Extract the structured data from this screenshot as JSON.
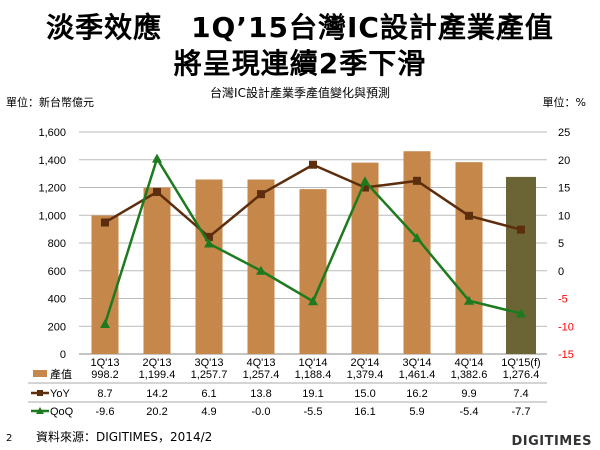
{
  "slide": {
    "title_line1": "淡季效應　1Q’15台灣IC設計產業產值",
    "title_line2": "將呈現連續2季下滑",
    "page_number": "2",
    "source": "資料來源：DIGITIMES，2014/2",
    "logo": "DIGITIMES"
  },
  "chart_data": {
    "type": "bar+line",
    "title": "台灣IC設計產業季產值變化與預測",
    "left_unit": "單位：新台幣億元",
    "right_unit": "單位：%",
    "categories": [
      "1Q'13",
      "2Q'13",
      "3Q'13",
      "4Q'13",
      "1Q'14",
      "2Q'14",
      "3Q'14",
      "4Q'14",
      "1Q'15(f)"
    ],
    "left_ylim": [
      0,
      1600
    ],
    "left_ticks": [
      "0",
      "200",
      "400",
      "600",
      "800",
      "1,000",
      "1,200",
      "1,400",
      "1,600"
    ],
    "right_ylim": [
      -15,
      25
    ],
    "right_ticks": [
      "-15",
      "-10",
      "-5",
      "0",
      "5",
      "10",
      "15",
      "20",
      "25"
    ],
    "grid": true,
    "legend": "data-table-below",
    "series": [
      {
        "name": "產值",
        "type": "bar",
        "axis": "left",
        "color": "#C6874A",
        "forecast_color": "#6B6535",
        "values": [
          998.2,
          1199.4,
          1257.7,
          1257.4,
          1188.4,
          1379.4,
          1461.4,
          1382.6,
          1276.4
        ],
        "labels": [
          "998.2",
          "1,199.4",
          "1,257.7",
          "1,257.4",
          "1,188.4",
          "1,379.4",
          "1,461.4",
          "1,382.6",
          "1,276.4"
        ]
      },
      {
        "name": "YoY",
        "type": "line",
        "axis": "right",
        "color": "#5C2E0E",
        "marker": "square",
        "values": [
          8.7,
          14.2,
          6.1,
          13.8,
          19.1,
          15.0,
          16.2,
          9.9,
          7.4
        ],
        "labels": [
          "8.7",
          "14.2",
          "6.1",
          "13.8",
          "19.1",
          "15.0",
          "16.2",
          "9.9",
          "7.4"
        ]
      },
      {
        "name": "QoQ",
        "type": "line",
        "axis": "right",
        "color": "#1E7A1E",
        "marker": "triangle",
        "values": [
          -9.6,
          20.2,
          4.9,
          -0.0,
          -5.5,
          16.1,
          5.9,
          -5.4,
          -7.7
        ],
        "labels": [
          "-9.6",
          "20.2",
          "4.9",
          "-0.0",
          "-5.5",
          "16.1",
          "5.9",
          "-5.4",
          "-7.7"
        ]
      }
    ],
    "negative_tick_color": "#FF0000"
  }
}
